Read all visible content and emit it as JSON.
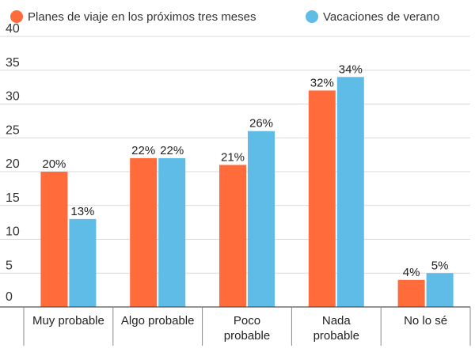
{
  "chart_data": {
    "type": "bar",
    "categories": [
      [
        "Muy probable"
      ],
      [
        "Algo probable"
      ],
      [
        "Poco",
        "probable"
      ],
      [
        "Nada",
        "probable"
      ],
      [
        "No lo sé"
      ]
    ],
    "series": [
      {
        "name": "Planes de viaje en los próximos tres meses",
        "color": "#ff6b3b",
        "values": [
          20,
          22,
          21,
          32,
          4
        ]
      },
      {
        "name": "Vacaciones de verano",
        "color": "#5ebce6",
        "values": [
          13,
          22,
          26,
          34,
          5
        ]
      }
    ],
    "value_suffix": "%",
    "yticks": [
      0,
      5,
      10,
      15,
      20,
      25,
      30,
      35,
      40
    ],
    "ylim": [
      0,
      40
    ],
    "grid": true,
    "legend_position": "top",
    "title": "",
    "xlabel": "",
    "ylabel": ""
  }
}
